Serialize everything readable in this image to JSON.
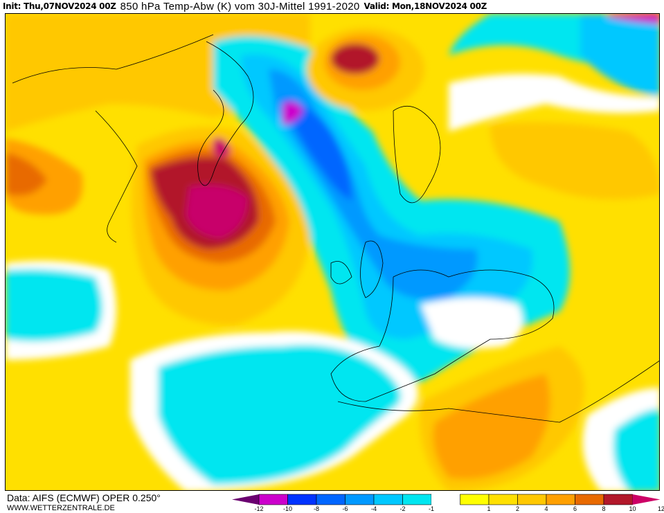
{
  "header": {
    "init": "Init: Thu,07NOV2024 00Z",
    "title": "850 hPa Temp-Abw (K) vom 30J-Mittel 1991-2020",
    "valid": "Valid: Mon,18NOV2024 00Z"
  },
  "footer": {
    "data_source": "Data: AIFS (ECMWF) OPER 0.250°",
    "website": "WWW.WETTERZENTRALE.DE"
  },
  "legend": {
    "labels": [
      "-12",
      "-10",
      "-8",
      "-6",
      "-4",
      "-2",
      "-1",
      "1",
      "2",
      "4",
      "6",
      "8",
      "10",
      "12"
    ],
    "below_min_color": "#6a0070",
    "above_max_color": "#cc0066",
    "colors": [
      "#cc00cc",
      "#0033ff",
      "#0066ff",
      "#0099ff",
      "#00c8ff",
      "#00e6f0",
      "#ffffff",
      "#ffff00",
      "#ffe000",
      "#ffc800",
      "#ffa000",
      "#e86a00",
      "#b2182b"
    ]
  },
  "map": {
    "variable": "850 hPa temperature anomaly (K)",
    "region": "North Atlantic / Europe / North Africa"
  }
}
